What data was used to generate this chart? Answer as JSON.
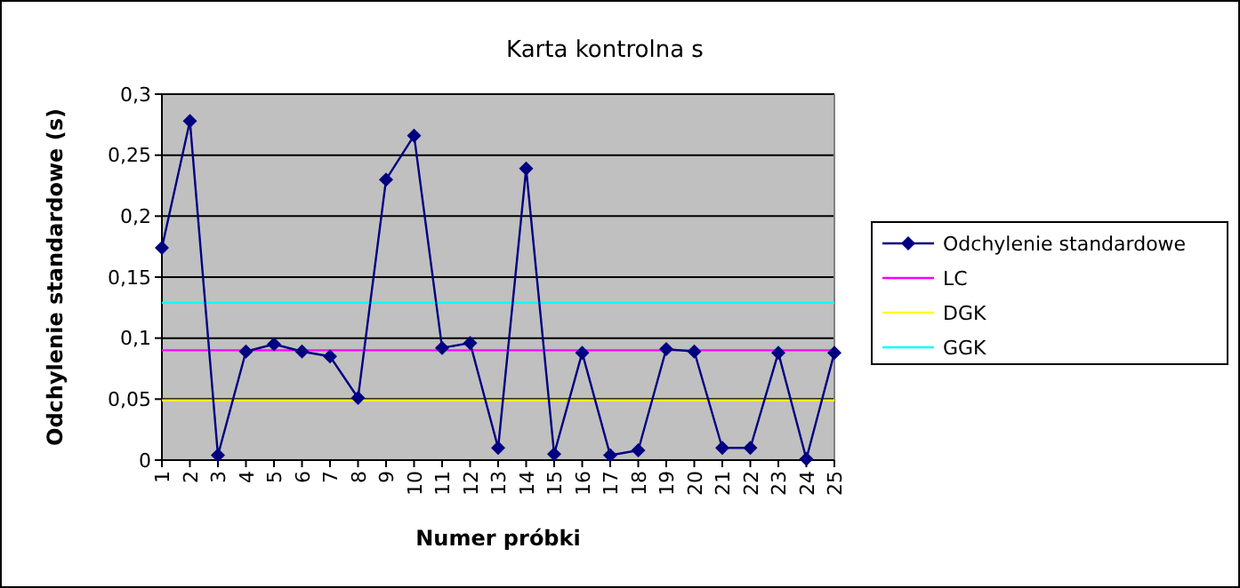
{
  "chart_data": {
    "type": "line",
    "title": "Karta kontrolna s",
    "xlabel": "Numer próbki",
    "ylabel": "Odchylenie standardowe (s)",
    "categories": [
      "1",
      "2",
      "3",
      "4",
      "5",
      "6",
      "7",
      "8",
      "9",
      "10",
      "11",
      "12",
      "13",
      "14",
      "15",
      "16",
      "17",
      "18",
      "19",
      "20",
      "21",
      "22",
      "23",
      "24",
      "25"
    ],
    "series": [
      {
        "name": "Odchylenie standardowe",
        "color": "#000080",
        "marker": "diamond",
        "values": [
          0.174,
          0.278,
          0.004,
          0.089,
          0.095,
          0.089,
          0.085,
          0.051,
          0.23,
          0.266,
          0.092,
          0.096,
          0.01,
          0.239,
          0.005,
          0.088,
          0.004,
          0.008,
          0.091,
          0.089,
          0.01,
          0.01,
          0.088,
          0.001,
          0.088
        ]
      },
      {
        "name": "LC",
        "color": "#ff00ff",
        "marker": "none",
        "values": [
          0.09,
          0.09,
          0.09,
          0.09,
          0.09,
          0.09,
          0.09,
          0.09,
          0.09,
          0.09,
          0.09,
          0.09,
          0.09,
          0.09,
          0.09,
          0.09,
          0.09,
          0.09,
          0.09,
          0.09,
          0.09,
          0.09,
          0.09,
          0.09,
          0.09
        ]
      },
      {
        "name": "DGK",
        "color": "#ffff00",
        "marker": "none",
        "values": [
          0.049,
          0.049,
          0.049,
          0.049,
          0.049,
          0.049,
          0.049,
          0.049,
          0.049,
          0.049,
          0.049,
          0.049,
          0.049,
          0.049,
          0.049,
          0.049,
          0.049,
          0.049,
          0.049,
          0.049,
          0.049,
          0.049,
          0.049,
          0.049,
          0.049
        ]
      },
      {
        "name": "GGK",
        "color": "#00ffff",
        "marker": "none",
        "values": [
          0.129,
          0.129,
          0.129,
          0.129,
          0.129,
          0.129,
          0.129,
          0.129,
          0.129,
          0.129,
          0.129,
          0.129,
          0.129,
          0.129,
          0.129,
          0.129,
          0.129,
          0.129,
          0.129,
          0.129,
          0.129,
          0.129,
          0.129,
          0.129,
          0.129
        ]
      }
    ],
    "ylim": [
      0,
      0.3
    ],
    "yticks": [
      {
        "value": 0,
        "label": "0"
      },
      {
        "value": 0.05,
        "label": "0,05"
      },
      {
        "value": 0.1,
        "label": "0,1"
      },
      {
        "value": 0.15,
        "label": "0,15"
      },
      {
        "value": 0.2,
        "label": "0,2"
      },
      {
        "value": 0.25,
        "label": "0,25"
      },
      {
        "value": 0.3,
        "label": "0,3"
      }
    ],
    "grid": "y",
    "legend": "right"
  }
}
